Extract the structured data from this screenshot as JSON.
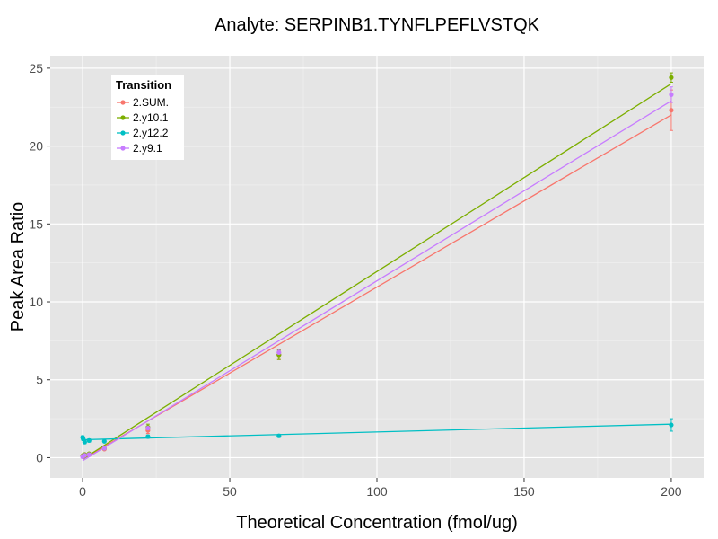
{
  "chart_data": {
    "type": "scatter",
    "title": "Analyte: SERPINB1.TYNFLPEFLVSTQK",
    "xlabel": "Theoretical Concentration (fmol/ug)",
    "ylabel": "Peak Area Ratio",
    "xlim": [
      -11,
      211
    ],
    "ylim": [
      -1.3,
      25.8
    ],
    "x_ticks": [
      0,
      50,
      100,
      150,
      200
    ],
    "y_ticks": [
      0,
      5,
      10,
      15,
      20,
      25
    ],
    "grid": true,
    "legend": {
      "title": "Transition",
      "position": "top-left",
      "entries": [
        "2.SUM.",
        "2.y10.1",
        "2.y12.2",
        "2.y9.1"
      ]
    },
    "series": [
      {
        "name": "2.SUM.",
        "color": "#F8766D",
        "x": [
          0,
          0.2,
          0.7,
          2.2,
          7.4,
          22.2,
          66.7,
          200
        ],
        "y": [
          0.1,
          0.15,
          0.2,
          0.2,
          0.55,
          1.75,
          6.6,
          22.3
        ],
        "err": [
          0,
          0,
          0,
          0,
          0,
          0.2,
          0.3,
          1.3
        ],
        "fit": [
          [
            0,
            -0.1
          ],
          [
            200,
            22.0
          ]
        ]
      },
      {
        "name": "2.y10.1",
        "color": "#7CAE00",
        "x": [
          0,
          0.2,
          0.7,
          2.2,
          7.4,
          22.2,
          66.7,
          200
        ],
        "y": [
          0.1,
          0.15,
          0.2,
          0.25,
          0.6,
          1.95,
          6.6,
          24.4
        ],
        "err": [
          0,
          0,
          0,
          0,
          0,
          0.2,
          0.3,
          0.3
        ],
        "fit": [
          [
            0,
            -0.1
          ],
          [
            200,
            24.0
          ]
        ]
      },
      {
        "name": "2.y12.2",
        "color": "#00BFC4",
        "x": [
          0,
          0.2,
          0.7,
          2.2,
          7.4,
          22.2,
          66.7,
          200
        ],
        "y": [
          1.3,
          1.2,
          1.0,
          1.1,
          1.05,
          1.35,
          1.4,
          2.1
        ],
        "err": [
          0.1,
          0.1,
          0.1,
          0.1,
          0,
          0.1,
          0.1,
          0.4
        ],
        "fit": [
          [
            0,
            1.15
          ],
          [
            200,
            2.15
          ]
        ]
      },
      {
        "name": "2.y9.1",
        "color": "#C77CFF",
        "x": [
          0,
          0.2,
          0.7,
          2.2,
          7.4,
          22.2,
          66.7,
          200
        ],
        "y": [
          0.05,
          0.1,
          0.15,
          0.2,
          0.6,
          1.9,
          6.75,
          23.3
        ],
        "err": [
          0,
          0,
          0,
          0,
          0,
          0.1,
          0.2,
          0.5
        ],
        "fit": [
          [
            0,
            -0.2
          ],
          [
            200,
            22.9
          ]
        ]
      }
    ]
  }
}
